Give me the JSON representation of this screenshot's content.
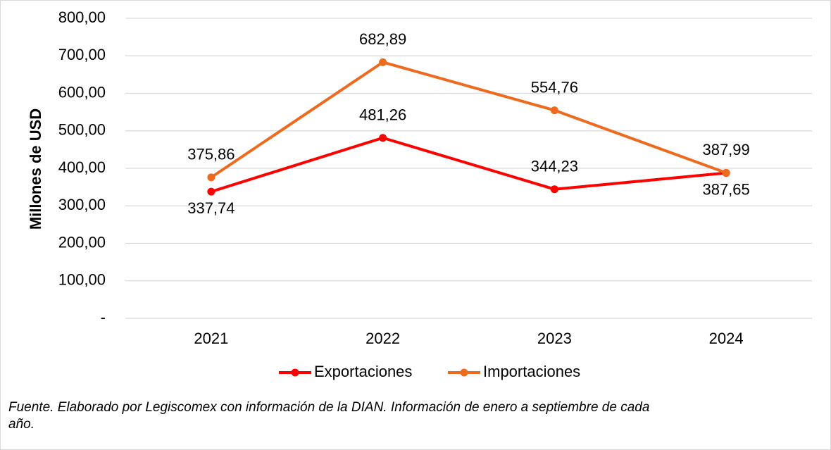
{
  "chart_data": {
    "type": "line",
    "categories": [
      "2021",
      "2022",
      "2023",
      "2024"
    ],
    "series": [
      {
        "name": "Exportaciones",
        "values": [
          337.74,
          481.26,
          344.23,
          387.65
        ],
        "labels": [
          "337,74",
          "481,26",
          "344,23",
          "387,65"
        ],
        "color": "#ff0000"
      },
      {
        "name": "Importaciones",
        "values": [
          375.86,
          682.89,
          554.76,
          387.99
        ],
        "labels": [
          "375,86",
          "682,89",
          "554,76",
          "387,99"
        ],
        "color": "#ed6a1e"
      }
    ],
    "ylabel": "Millones de USD",
    "ylim": [
      0,
      800
    ],
    "yticks": [
      0,
      100,
      200,
      300,
      400,
      500,
      600,
      700,
      800
    ],
    "ytick_labels": [
      "-",
      "100,00",
      "200,00",
      "300,00",
      "400,00",
      "500,00",
      "600,00",
      "700,00",
      "800,00"
    ],
    "grid": true,
    "legend_position": "bottom"
  },
  "footnote": "Fuente. Elaborado por Legiscomex con información de la DIAN. Información de enero a septiembre de cada año.",
  "colors": {
    "grid": "#d9d9d9",
    "frame": "#d9d9d9"
  }
}
